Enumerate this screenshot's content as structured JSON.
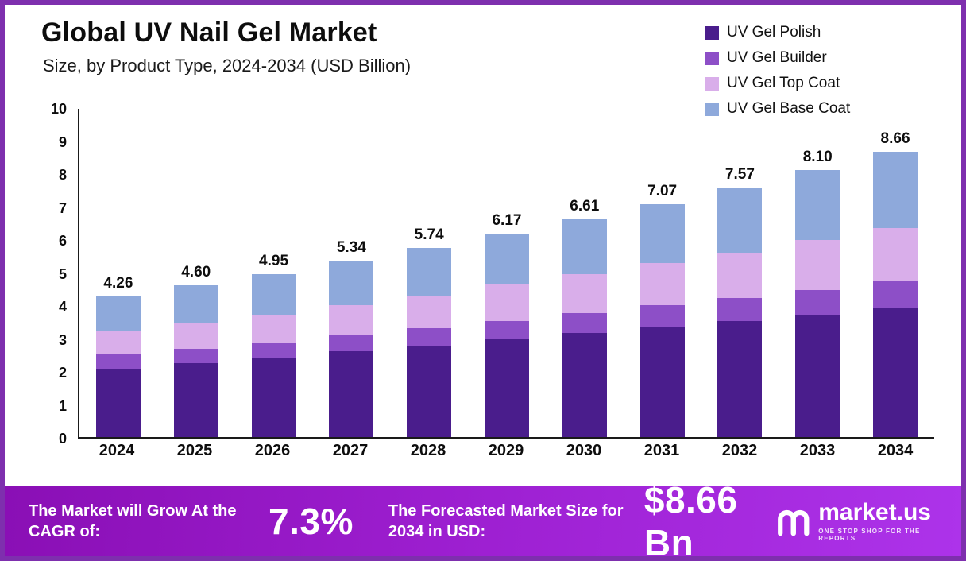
{
  "title": "Global UV Nail Gel Market",
  "subtitle": "Size, by Product Type, 2024-2034 (USD Billion)",
  "legend": [
    {
      "label": "UV Gel Polish",
      "color": "#4a1d8c"
    },
    {
      "label": "UV Gel Builder",
      "color": "#8d4fc7"
    },
    {
      "label": "UV Gel Top Coat",
      "color": "#d9aeea"
    },
    {
      "label": "UV Gel Base Coat",
      "color": "#8ea9db"
    }
  ],
  "chart_data": {
    "type": "bar",
    "stacked": true,
    "categories": [
      "2024",
      "2025",
      "2026",
      "2027",
      "2028",
      "2029",
      "2030",
      "2031",
      "2032",
      "2033",
      "2034"
    ],
    "series": [
      {
        "name": "UV Gel Polish",
        "color": "#4a1d8c",
        "values": [
          2.05,
          2.25,
          2.4,
          2.6,
          2.78,
          2.98,
          3.15,
          3.35,
          3.52,
          3.72,
          3.92
        ]
      },
      {
        "name": "UV Gel Builder",
        "color": "#8d4fc7",
        "values": [
          0.45,
          0.42,
          0.45,
          0.48,
          0.52,
          0.55,
          0.6,
          0.65,
          0.7,
          0.75,
          0.82
        ]
      },
      {
        "name": "UV Gel Top Coat",
        "color": "#d9aeea",
        "values": [
          0.7,
          0.78,
          0.85,
          0.92,
          1.0,
          1.1,
          1.2,
          1.28,
          1.38,
          1.5,
          1.6
        ]
      },
      {
        "name": "UV Gel Base Coat",
        "color": "#8ea9db",
        "values": [
          1.06,
          1.15,
          1.25,
          1.34,
          1.44,
          1.54,
          1.66,
          1.79,
          1.97,
          2.13,
          2.32
        ]
      }
    ],
    "totals": [
      "4.26",
      "4.60",
      "4.95",
      "5.34",
      "5.74",
      "6.17",
      "6.61",
      "7.07",
      "7.57",
      "8.10",
      "8.66"
    ],
    "title": "Global UV Nail Gel Market Size, by Product Type, 2024-2034 (USD Billion)",
    "xlabel": "",
    "ylabel": "",
    "ylim": [
      0,
      10
    ],
    "yticks": [
      0,
      1,
      2,
      3,
      4,
      5,
      6,
      7,
      8,
      9,
      10
    ],
    "grid": false,
    "legend_position": "top-right"
  },
  "footer": {
    "cagr_label": "The Market will Grow At the CAGR of:",
    "cagr_value": "7.3%",
    "forecast_label": "The Forecasted Market Size for 2034 in USD:",
    "forecast_value": "$8.66 Bn",
    "brand_name": "market.us",
    "brand_tagline": "ONE STOP SHOP FOR THE REPORTS"
  }
}
